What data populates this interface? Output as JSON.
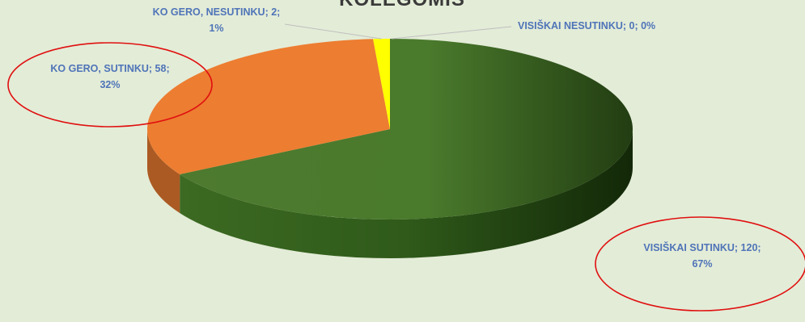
{
  "chart_data": {
    "type": "pie",
    "title": "KOLEGOMIS",
    "slices": [
      {
        "label": "VISIŠKAI SUTINKU",
        "value": 120,
        "percent": "67%",
        "color": "#548235"
      },
      {
        "label": "KO GERO, SUTINKU",
        "value": 58,
        "percent": "32%",
        "color": "#ed7d31"
      },
      {
        "label": "KO GERO, NESUTINKU",
        "value": 2,
        "percent": "1%",
        "color": "#ffff00"
      },
      {
        "label": "VISIŠKAI NESUTINKU",
        "value": 0,
        "percent": "0%",
        "color": "#ffc000"
      }
    ],
    "data_labels": [
      {
        "line1": "VISIŠKAI SUTINKU; 120;",
        "line2": "67%"
      },
      {
        "line1": "KO GERO, SUTINKU; 58;",
        "line2": "32%"
      },
      {
        "line1": "KO GERO, NESUTINKU; 2;",
        "line2": "1%"
      },
      {
        "line1": "VISIŠKAI NESUTINKU; 0; 0%",
        "line2": ""
      }
    ],
    "legend": "none",
    "style": "3d-pie",
    "annotations": "red ellipses around the VISIŠKAI SUTINKU and KO GERO, SUTINKU labels"
  }
}
